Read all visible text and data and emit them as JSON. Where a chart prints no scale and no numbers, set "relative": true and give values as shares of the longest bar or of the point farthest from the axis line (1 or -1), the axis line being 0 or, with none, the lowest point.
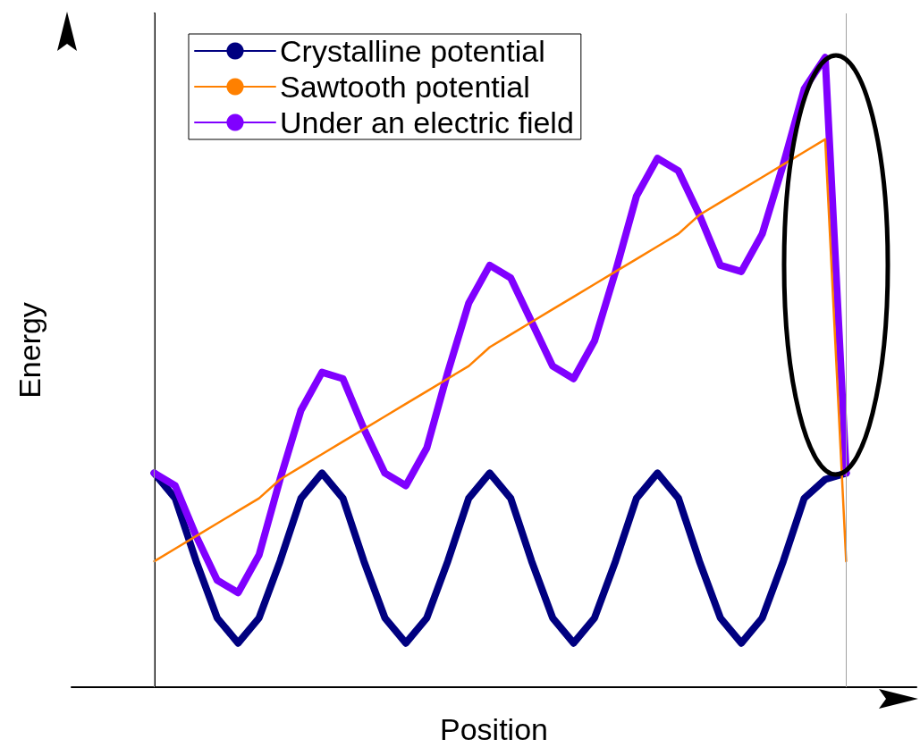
{
  "chart_data": {
    "type": "line",
    "relative": true,
    "xlabel": "Position",
    "ylabel": "Energy",
    "grid": false,
    "legend": "top",
    "marker": "none",
    "line_style": "solid",
    "categories": [
      null,
      null,
      null,
      null,
      null,
      null,
      null,
      null,
      null,
      null,
      null,
      null,
      null,
      null,
      null,
      null,
      null,
      null,
      null,
      null,
      null,
      null,
      null,
      null,
      null,
      null,
      null,
      null,
      null,
      null,
      null,
      null,
      null,
      null
    ],
    "series": [
      {
        "name": "Crystalline potential",
        "color": "#000080",
        "values": [
          0.34,
          0.3,
          0.2,
          0.11,
          0.07,
          0.11,
          0.2,
          0.3,
          0.34,
          0.3,
          0.2,
          0.11,
          0.07,
          0.11,
          0.2,
          0.3,
          0.34,
          0.3,
          0.2,
          0.11,
          0.07,
          0.11,
          0.2,
          0.3,
          0.34,
          0.3,
          0.2,
          0.11,
          0.07,
          0.11,
          0.2,
          0.3,
          0.33,
          0.34
        ]
      },
      {
        "name": "Sawtooth potential",
        "color": "#ff8000",
        "values": [
          0.2,
          0.22,
          0.24,
          0.26,
          0.28,
          0.3,
          0.33,
          0.35,
          0.37,
          0.39,
          0.41,
          0.43,
          0.45,
          0.47,
          0.49,
          0.51,
          0.54,
          0.56,
          0.58,
          0.6,
          0.62,
          0.64,
          0.66,
          0.68,
          0.7,
          0.72,
          0.75,
          0.77,
          0.79,
          0.81,
          0.83,
          0.85,
          0.87,
          0.2
        ]
      },
      {
        "name": "Under an electric field",
        "color": "#8000ff",
        "values": [
          0.34,
          0.32,
          0.24,
          0.17,
          0.15,
          0.21,
          0.33,
          0.44,
          0.5,
          0.49,
          0.41,
          0.34,
          0.32,
          0.38,
          0.5,
          0.61,
          0.67,
          0.65,
          0.58,
          0.51,
          0.49,
          0.55,
          0.66,
          0.78,
          0.84,
          0.82,
          0.75,
          0.67,
          0.66,
          0.72,
          0.83,
          0.95,
          1,
          0.34
        ]
      }
    ],
    "ref_lines": [
      {
        "axis": "x",
        "color": "#a0a0a0"
      },
      {
        "axis": "x",
        "color": "#a0a0a0"
      }
    ]
  }
}
